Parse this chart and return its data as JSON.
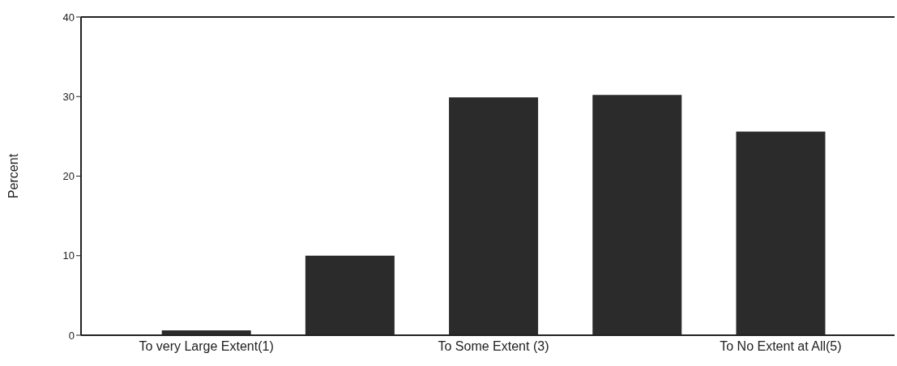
{
  "chart_data": {
    "type": "bar",
    "ylabel": "Percent",
    "categories": [
      "To very Large Extent(1)",
      null,
      "To Some Extent (3)",
      null,
      "To No Extent at All(5)"
    ],
    "values": [
      0.6,
      10,
      29.9,
      30.2,
      25.6
    ],
    "color": "#2b2b2b",
    "ylim": [
      0,
      40
    ],
    "yticks": [
      0,
      10,
      20,
      30,
      40
    ]
  }
}
